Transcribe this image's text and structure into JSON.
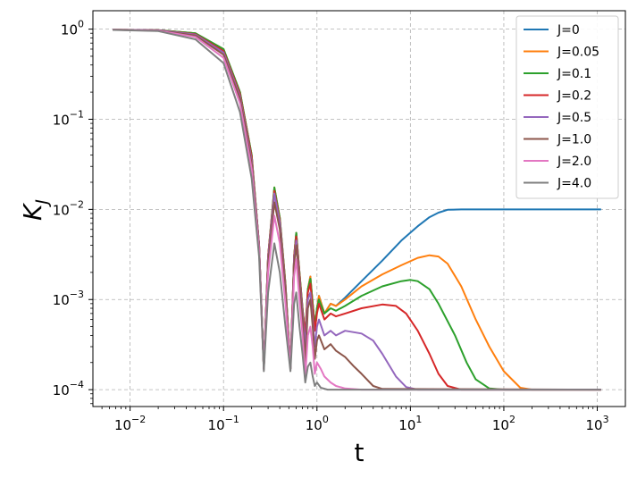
{
  "chart_data": {
    "type": "line",
    "xlabel": "t",
    "ylabel": "K",
    "ylabel_subscript": "J",
    "xscale": "log",
    "yscale": "log",
    "xlim": [
      0.004,
      2000
    ],
    "ylim": [
      6.5e-05,
      1.6
    ],
    "grid": true,
    "legend_position": "top-right",
    "x_ticks": [
      {
        "value": 0.01,
        "base": "10",
        "exp": "−2"
      },
      {
        "value": 0.1,
        "base": "10",
        "exp": "−1"
      },
      {
        "value": 1,
        "base": "10",
        "exp": "0"
      },
      {
        "value": 10,
        "base": "10",
        "exp": "1"
      },
      {
        "value": 100,
        "base": "10",
        "exp": "2"
      },
      {
        "value": 1000,
        "base": "10",
        "exp": "3"
      }
    ],
    "y_ticks": [
      {
        "value": 0.0001,
        "base": "10",
        "exp": "−4"
      },
      {
        "value": 0.001,
        "base": "10",
        "exp": "−3"
      },
      {
        "value": 0.01,
        "base": "10",
        "exp": "−2"
      },
      {
        "value": 0.1,
        "base": "10",
        "exp": "−1"
      },
      {
        "value": 1,
        "base": "10",
        "exp": "0"
      }
    ],
    "series": [
      {
        "name": "J=0",
        "color": "#1f77b4",
        "points": [
          [
            0.0065,
            0.985
          ],
          [
            0.02,
            0.975
          ],
          [
            0.05,
            0.9
          ],
          [
            0.1,
            0.6
          ],
          [
            0.15,
            0.2
          ],
          [
            0.2,
            0.04
          ],
          [
            0.24,
            0.004
          ],
          [
            0.27,
            0.00017
          ],
          [
            0.3,
            0.003
          ],
          [
            0.35,
            0.017
          ],
          [
            0.4,
            0.008
          ],
          [
            0.46,
            0.0015
          ],
          [
            0.52,
            0.00017
          ],
          [
            0.57,
            0.003
          ],
          [
            0.6,
            0.0055
          ],
          [
            0.65,
            0.002
          ],
          [
            0.7,
            0.0008
          ],
          [
            0.75,
            0.0004
          ],
          [
            0.8,
            0.0013
          ],
          [
            0.85,
            0.0018
          ],
          [
            0.9,
            0.0009
          ],
          [
            0.95,
            0.0005
          ],
          [
            1.0,
            0.0008
          ],
          [
            1.05,
            0.0011
          ],
          [
            1.2,
            0.0007
          ],
          [
            1.4,
            0.0009
          ],
          [
            1.6,
            0.00085
          ],
          [
            2,
            0.00105
          ],
          [
            3,
            0.0016
          ],
          [
            5,
            0.0027
          ],
          [
            8,
            0.0045
          ],
          [
            12,
            0.0065
          ],
          [
            16,
            0.0082
          ],
          [
            20,
            0.0092
          ],
          [
            25,
            0.0099
          ],
          [
            35,
            0.01
          ],
          [
            100,
            0.01
          ],
          [
            300,
            0.01
          ],
          [
            1000,
            0.01
          ],
          [
            1100,
            0.01
          ]
        ]
      },
      {
        "name": "J=0.05",
        "color": "#ff7f0e",
        "points": [
          [
            0.0065,
            0.985
          ],
          [
            0.02,
            0.975
          ],
          [
            0.05,
            0.9
          ],
          [
            0.1,
            0.6
          ],
          [
            0.15,
            0.2
          ],
          [
            0.2,
            0.04
          ],
          [
            0.24,
            0.004
          ],
          [
            0.27,
            0.00017
          ],
          [
            0.3,
            0.003
          ],
          [
            0.35,
            0.0175
          ],
          [
            0.4,
            0.008
          ],
          [
            0.46,
            0.0015
          ],
          [
            0.52,
            0.00017
          ],
          [
            0.57,
            0.003
          ],
          [
            0.6,
            0.0055
          ],
          [
            0.65,
            0.002
          ],
          [
            0.7,
            0.0008
          ],
          [
            0.75,
            0.0004
          ],
          [
            0.8,
            0.0013
          ],
          [
            0.85,
            0.0018
          ],
          [
            0.9,
            0.0009
          ],
          [
            0.95,
            0.0005
          ],
          [
            1.0,
            0.0008
          ],
          [
            1.05,
            0.0011
          ],
          [
            1.2,
            0.0007
          ],
          [
            1.4,
            0.0009
          ],
          [
            1.6,
            0.00085
          ],
          [
            2,
            0.001
          ],
          [
            3,
            0.0014
          ],
          [
            5,
            0.0019
          ],
          [
            8,
            0.0024
          ],
          [
            12,
            0.0029
          ],
          [
            16,
            0.0031
          ],
          [
            20,
            0.003
          ],
          [
            25,
            0.0025
          ],
          [
            35,
            0.0014
          ],
          [
            50,
            0.0006
          ],
          [
            70,
            0.0003
          ],
          [
            100,
            0.00016
          ],
          [
            150,
            0.000105
          ],
          [
            200,
            0.0001
          ],
          [
            1100,
            0.0001
          ]
        ]
      },
      {
        "name": "J=0.1",
        "color": "#2ca02c",
        "points": [
          [
            0.0065,
            0.985
          ],
          [
            0.02,
            0.975
          ],
          [
            0.05,
            0.9
          ],
          [
            0.1,
            0.6
          ],
          [
            0.15,
            0.2
          ],
          [
            0.2,
            0.04
          ],
          [
            0.24,
            0.004
          ],
          [
            0.27,
            0.00017
          ],
          [
            0.3,
            0.003
          ],
          [
            0.35,
            0.0175
          ],
          [
            0.4,
            0.008
          ],
          [
            0.46,
            0.0015
          ],
          [
            0.52,
            0.00017
          ],
          [
            0.57,
            0.003
          ],
          [
            0.6,
            0.0055
          ],
          [
            0.65,
            0.002
          ],
          [
            0.7,
            0.0008
          ],
          [
            0.75,
            0.0004
          ],
          [
            0.8,
            0.0013
          ],
          [
            0.85,
            0.0017
          ],
          [
            0.9,
            0.0009
          ],
          [
            0.95,
            0.0005
          ],
          [
            1.0,
            0.0008
          ],
          [
            1.05,
            0.001
          ],
          [
            1.2,
            0.0007
          ],
          [
            1.4,
            0.0008
          ],
          [
            1.6,
            0.00075
          ],
          [
            2,
            0.00085
          ],
          [
            3,
            0.0011
          ],
          [
            5,
            0.0014
          ],
          [
            8,
            0.0016
          ],
          [
            10,
            0.00165
          ],
          [
            12,
            0.0016
          ],
          [
            16,
            0.0013
          ],
          [
            20,
            0.0009
          ],
          [
            30,
            0.0004
          ],
          [
            40,
            0.0002
          ],
          [
            50,
            0.00013
          ],
          [
            70,
            0.000103
          ],
          [
            100,
            0.0001
          ],
          [
            1100,
            0.0001
          ]
        ]
      },
      {
        "name": "J=0.2",
        "color": "#d62728",
        "points": [
          [
            0.0065,
            0.985
          ],
          [
            0.02,
            0.97
          ],
          [
            0.05,
            0.88
          ],
          [
            0.1,
            0.57
          ],
          [
            0.15,
            0.19
          ],
          [
            0.2,
            0.038
          ],
          [
            0.24,
            0.004
          ],
          [
            0.27,
            0.00017
          ],
          [
            0.3,
            0.003
          ],
          [
            0.35,
            0.016
          ],
          [
            0.4,
            0.0075
          ],
          [
            0.46,
            0.0014
          ],
          [
            0.52,
            0.00017
          ],
          [
            0.57,
            0.003
          ],
          [
            0.6,
            0.005
          ],
          [
            0.65,
            0.0019
          ],
          [
            0.7,
            0.00075
          ],
          [
            0.75,
            0.0004
          ],
          [
            0.8,
            0.0012
          ],
          [
            0.85,
            0.0015
          ],
          [
            0.9,
            0.0008
          ],
          [
            0.95,
            0.00045
          ],
          [
            1.0,
            0.0007
          ],
          [
            1.05,
            0.0009
          ],
          [
            1.2,
            0.0006
          ],
          [
            1.4,
            0.0007
          ],
          [
            1.6,
            0.00065
          ],
          [
            2,
            0.0007
          ],
          [
            3,
            0.0008
          ],
          [
            5,
            0.00088
          ],
          [
            7,
            0.00085
          ],
          [
            9,
            0.0007
          ],
          [
            12,
            0.00045
          ],
          [
            16,
            0.00025
          ],
          [
            20,
            0.00015
          ],
          [
            25,
            0.00011
          ],
          [
            35,
            0.0001
          ],
          [
            1100,
            0.0001
          ]
        ]
      },
      {
        "name": "J=0.5",
        "color": "#9467bd",
        "points": [
          [
            0.0065,
            0.985
          ],
          [
            0.02,
            0.97
          ],
          [
            0.05,
            0.87
          ],
          [
            0.1,
            0.55
          ],
          [
            0.15,
            0.18
          ],
          [
            0.2,
            0.035
          ],
          [
            0.24,
            0.004
          ],
          [
            0.27,
            0.00017
          ],
          [
            0.3,
            0.0028
          ],
          [
            0.35,
            0.015
          ],
          [
            0.4,
            0.007
          ],
          [
            0.46,
            0.0013
          ],
          [
            0.52,
            0.00017
          ],
          [
            0.57,
            0.0028
          ],
          [
            0.6,
            0.0045
          ],
          [
            0.65,
            0.0017
          ],
          [
            0.7,
            0.0007
          ],
          [
            0.75,
            0.0003
          ],
          [
            0.8,
            0.001
          ],
          [
            0.85,
            0.0012
          ],
          [
            0.9,
            0.0006
          ],
          [
            0.95,
            0.0003
          ],
          [
            1.0,
            0.0005
          ],
          [
            1.05,
            0.0006
          ],
          [
            1.2,
            0.0004
          ],
          [
            1.4,
            0.00045
          ],
          [
            1.6,
            0.0004
          ],
          [
            2,
            0.00045
          ],
          [
            3,
            0.00042
          ],
          [
            4,
            0.00035
          ],
          [
            5,
            0.00025
          ],
          [
            7,
            0.00014
          ],
          [
            9,
            0.000107
          ],
          [
            12,
            0.0001
          ],
          [
            1100,
            0.0001
          ]
        ]
      },
      {
        "name": "J=1.0",
        "color": "#8c564b",
        "points": [
          [
            0.0065,
            0.985
          ],
          [
            0.02,
            0.965
          ],
          [
            0.05,
            0.85
          ],
          [
            0.1,
            0.52
          ],
          [
            0.15,
            0.17
          ],
          [
            0.2,
            0.032
          ],
          [
            0.24,
            0.0038
          ],
          [
            0.27,
            0.00017
          ],
          [
            0.3,
            0.0025
          ],
          [
            0.35,
            0.012
          ],
          [
            0.4,
            0.006
          ],
          [
            0.46,
            0.0012
          ],
          [
            0.52,
            0.00017
          ],
          [
            0.57,
            0.0025
          ],
          [
            0.6,
            0.004
          ],
          [
            0.65,
            0.0015
          ],
          [
            0.7,
            0.0006
          ],
          [
            0.75,
            0.0002
          ],
          [
            0.8,
            0.0008
          ],
          [
            0.85,
            0.001
          ],
          [
            0.9,
            0.0005
          ],
          [
            0.95,
            0.00022
          ],
          [
            1.0,
            0.00035
          ],
          [
            1.05,
            0.0004
          ],
          [
            1.2,
            0.00028
          ],
          [
            1.4,
            0.00032
          ],
          [
            1.6,
            0.00027
          ],
          [
            2,
            0.00023
          ],
          [
            2.5,
            0.00018
          ],
          [
            3,
            0.00015
          ],
          [
            4,
            0.00011
          ],
          [
            5,
            0.000102
          ],
          [
            1100,
            0.0001
          ]
        ]
      },
      {
        "name": "J=2.0",
        "color": "#e377c2",
        "points": [
          [
            0.0065,
            0.985
          ],
          [
            0.02,
            0.96
          ],
          [
            0.05,
            0.82
          ],
          [
            0.1,
            0.48
          ],
          [
            0.15,
            0.15
          ],
          [
            0.2,
            0.028
          ],
          [
            0.24,
            0.0035
          ],
          [
            0.27,
            0.00017
          ],
          [
            0.3,
            0.002
          ],
          [
            0.35,
            0.0085
          ],
          [
            0.4,
            0.0042
          ],
          [
            0.46,
            0.0009
          ],
          [
            0.52,
            0.00017
          ],
          [
            0.57,
            0.0018
          ],
          [
            0.6,
            0.0028
          ],
          [
            0.65,
            0.001
          ],
          [
            0.7,
            0.0004
          ],
          [
            0.75,
            0.00014
          ],
          [
            0.8,
            0.0004
          ],
          [
            0.85,
            0.0005
          ],
          [
            0.9,
            0.0003
          ],
          [
            0.95,
            0.00015
          ],
          [
            1.0,
            0.0002
          ],
          [
            1.1,
            0.00017
          ],
          [
            1.2,
            0.00014
          ],
          [
            1.4,
            0.00012
          ],
          [
            1.6,
            0.00011
          ],
          [
            2,
            0.000103
          ],
          [
            3,
            0.0001
          ],
          [
            1100,
            0.0001
          ]
        ]
      },
      {
        "name": "J=4.0",
        "color": "#7f7f7f",
        "points": [
          [
            0.0065,
            0.98
          ],
          [
            0.02,
            0.95
          ],
          [
            0.05,
            0.77
          ],
          [
            0.1,
            0.42
          ],
          [
            0.15,
            0.12
          ],
          [
            0.2,
            0.022
          ],
          [
            0.24,
            0.003
          ],
          [
            0.27,
            0.00016
          ],
          [
            0.3,
            0.0012
          ],
          [
            0.35,
            0.0042
          ],
          [
            0.4,
            0.002
          ],
          [
            0.46,
            0.0005
          ],
          [
            0.52,
            0.00016
          ],
          [
            0.57,
            0.0009
          ],
          [
            0.6,
            0.0012
          ],
          [
            0.65,
            0.0005
          ],
          [
            0.7,
            0.00025
          ],
          [
            0.75,
            0.00012
          ],
          [
            0.8,
            0.00018
          ],
          [
            0.85,
            0.0002
          ],
          [
            0.9,
            0.00014
          ],
          [
            0.95,
            0.00011
          ],
          [
            1.0,
            0.00012
          ],
          [
            1.1,
            0.000105
          ],
          [
            1.3,
            0.0001
          ],
          [
            1100,
            0.0001
          ]
        ]
      }
    ]
  }
}
